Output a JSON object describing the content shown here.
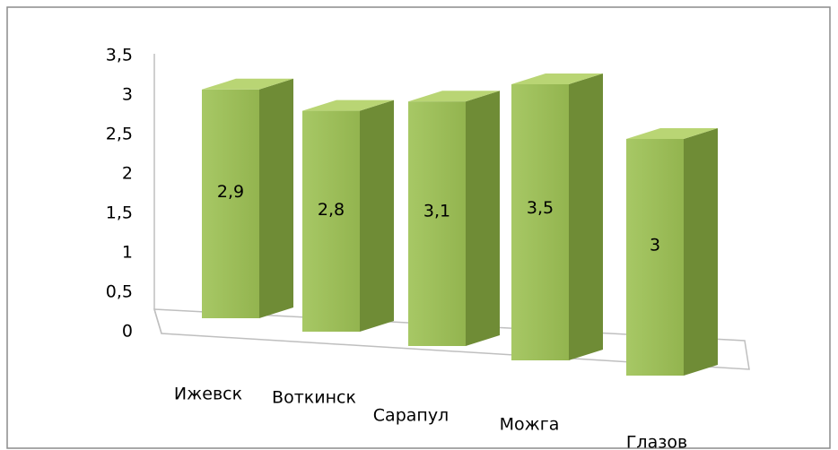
{
  "chart_data": {
    "type": "bar3d",
    "categories": [
      "Ижевск",
      "Воткинск",
      "Сарапул",
      "Можга",
      "Глазов"
    ],
    "values": [
      2.9,
      2.8,
      3.1,
      3.5,
      3
    ],
    "value_labels": [
      "2,9",
      "2,8",
      "3,1",
      "3,5",
      "3"
    ],
    "color": "#9bbb59",
    "ylim": [
      0,
      3.5
    ],
    "yticks": [
      0,
      {
        "value": 0.5,
        "label": "0,5"
      },
      1,
      {
        "value": 1.5,
        "label": "1,5"
      },
      2,
      {
        "value": 2.5,
        "label": "2,5"
      },
      3,
      {
        "value": 3.5,
        "label": "3,5"
      }
    ]
  }
}
